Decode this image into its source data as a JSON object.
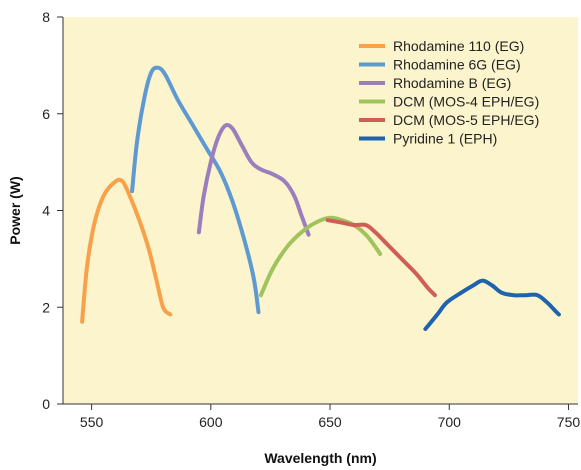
{
  "chart_data": {
    "type": "line",
    "xlabel": "Wavelength (nm)",
    "ylabel": "Power (W)",
    "xlim": [
      538,
      754
    ],
    "ylim": [
      0,
      8
    ],
    "xticks": [
      550,
      600,
      650,
      700,
      750
    ],
    "yticks": [
      0,
      2,
      4,
      6,
      8
    ],
    "grid": false,
    "legend_position": "top-right",
    "plot_background": "#fcf4cc",
    "series": [
      {
        "name": "Rhodamine 110 (EG)",
        "color": "#f7a24b",
        "points": [
          [
            546,
            1.7
          ],
          [
            548,
            2.8
          ],
          [
            551,
            3.7
          ],
          [
            555,
            4.3
          ],
          [
            560,
            4.6
          ],
          [
            563,
            4.6
          ],
          [
            566,
            4.3
          ],
          [
            570,
            3.8
          ],
          [
            574,
            3.2
          ],
          [
            577,
            2.6
          ],
          [
            580,
            2.0
          ],
          [
            583,
            1.85
          ]
        ]
      },
      {
        "name": "Rhodamine 6G (EG)",
        "color": "#5e9ad1",
        "points": [
          [
            567,
            4.4
          ],
          [
            569,
            5.4
          ],
          [
            572,
            6.3
          ],
          [
            575,
            6.85
          ],
          [
            578,
            6.95
          ],
          [
            581,
            6.8
          ],
          [
            586,
            6.3
          ],
          [
            592,
            5.8
          ],
          [
            598,
            5.3
          ],
          [
            604,
            4.8
          ],
          [
            609,
            4.2
          ],
          [
            614,
            3.4
          ],
          [
            618,
            2.6
          ],
          [
            620,
            1.9
          ]
        ]
      },
      {
        "name": "Rhodamine B (EG)",
        "color": "#9b7fbd",
        "points": [
          [
            595,
            3.55
          ],
          [
            597,
            4.3
          ],
          [
            600,
            5.0
          ],
          [
            603,
            5.5
          ],
          [
            606,
            5.75
          ],
          [
            609,
            5.7
          ],
          [
            613,
            5.35
          ],
          [
            617,
            5.0
          ],
          [
            621,
            4.85
          ],
          [
            626,
            4.75
          ],
          [
            631,
            4.6
          ],
          [
            635,
            4.3
          ],
          [
            638,
            3.9
          ],
          [
            641,
            3.5
          ]
        ]
      },
      {
        "name": "DCM (MOS-4 EPH/EG)",
        "color": "#9fc45e",
        "points": [
          [
            621,
            2.25
          ],
          [
            626,
            2.8
          ],
          [
            632,
            3.25
          ],
          [
            638,
            3.55
          ],
          [
            644,
            3.75
          ],
          [
            650,
            3.85
          ],
          [
            655,
            3.8
          ],
          [
            660,
            3.7
          ],
          [
            665,
            3.5
          ],
          [
            669,
            3.25
          ],
          [
            671,
            3.1
          ]
        ]
      },
      {
        "name": "DCM (MOS-5 EPH/EG)",
        "color": "#cf5e56",
        "points": [
          [
            649,
            3.8
          ],
          [
            655,
            3.75
          ],
          [
            660,
            3.7
          ],
          [
            665,
            3.7
          ],
          [
            669,
            3.55
          ],
          [
            674,
            3.3
          ],
          [
            680,
            3.0
          ],
          [
            686,
            2.7
          ],
          [
            691,
            2.4
          ],
          [
            694,
            2.25
          ]
        ]
      },
      {
        "name": "Pyridine 1 (EPH)",
        "color": "#1f62ad",
        "points": [
          [
            690,
            1.55
          ],
          [
            695,
            1.85
          ],
          [
            699,
            2.1
          ],
          [
            705,
            2.3
          ],
          [
            710,
            2.45
          ],
          [
            714,
            2.55
          ],
          [
            718,
            2.45
          ],
          [
            722,
            2.3
          ],
          [
            727,
            2.25
          ],
          [
            732,
            2.25
          ],
          [
            737,
            2.25
          ],
          [
            741,
            2.1
          ],
          [
            744,
            1.95
          ],
          [
            746,
            1.85
          ]
        ]
      }
    ]
  }
}
